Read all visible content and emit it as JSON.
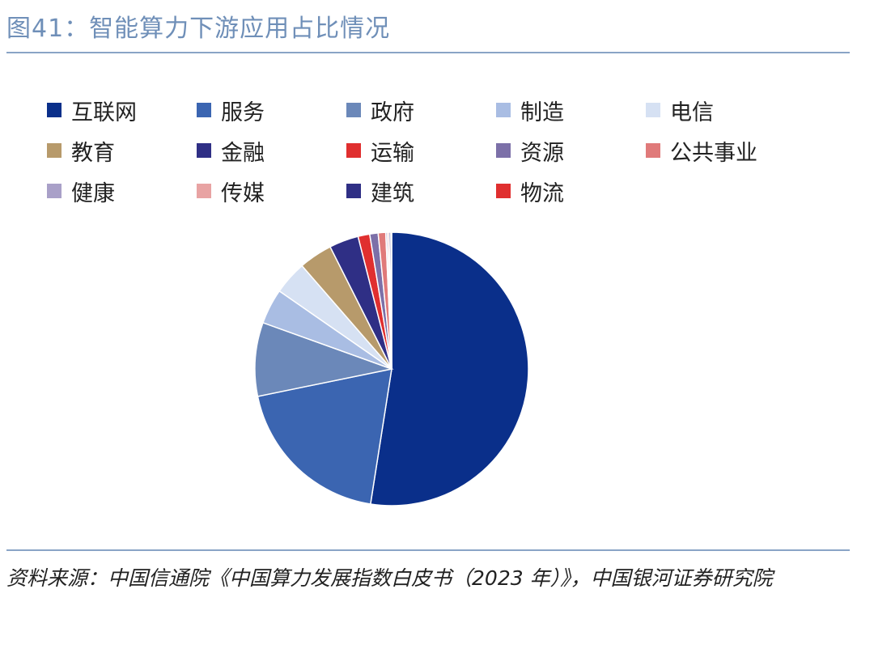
{
  "header": {
    "title": "图41：智能算力下游应用占比情况"
  },
  "chart_data": {
    "type": "pie",
    "title": "",
    "legend_position": "top",
    "start_angle_deg": 0,
    "direction": "clockwise",
    "slices": [
      {
        "label": "互联网",
        "value": 53.0,
        "color": "#0a2f8a"
      },
      {
        "label": "服务",
        "value": 19.5,
        "color": "#3b65b1"
      },
      {
        "label": "政府",
        "value": 8.8,
        "color": "#6b88b9"
      },
      {
        "label": "制造",
        "value": 4.2,
        "color": "#a9bde3"
      },
      {
        "label": "电信",
        "value": 4.0,
        "color": "#d6e1f3"
      },
      {
        "label": "教育",
        "value": 4.0,
        "color": "#b79a6b"
      },
      {
        "label": "金融",
        "value": 3.5,
        "color": "#2f2f85"
      },
      {
        "label": "运输",
        "value": 1.4,
        "color": "#e02f2f"
      },
      {
        "label": "资源",
        "value": 1.0,
        "color": "#7c70a8"
      },
      {
        "label": "公共事业",
        "value": 0.9,
        "color": "#e07a7a"
      },
      {
        "label": "健康",
        "value": 0.2,
        "color": "#a9a0c8"
      },
      {
        "label": "传媒",
        "value": 0.2,
        "color": "#e8a3a3"
      },
      {
        "label": "建筑",
        "value": 0.2,
        "color": "#2f2f85"
      },
      {
        "label": "物流",
        "value": 0.1,
        "color": "#e02f2f"
      }
    ]
  },
  "footer": {
    "source": "资料来源：中国信通院《中国算力发展指数白皮书（2023 年）》，中国银河证券研究院"
  }
}
